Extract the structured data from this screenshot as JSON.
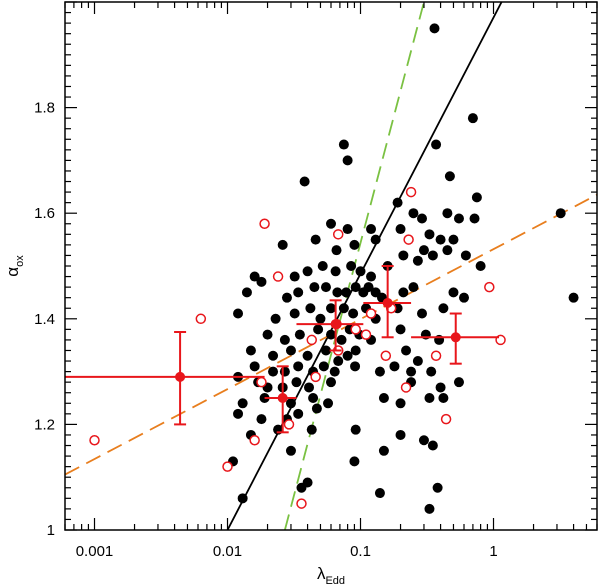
{
  "chart_data": {
    "type": "scatter",
    "title": "",
    "xlabel": {
      "main": "λ",
      "sub": "Edd"
    },
    "ylabel": {
      "main": "α",
      "sub": "ox"
    },
    "xscale": "log",
    "xlim": [
      0.0006,
      6.0
    ],
    "ylim": [
      1.0,
      2.0
    ],
    "x_ticks": [
      0.001,
      0.01,
      0.1,
      1
    ],
    "x_tick_labels": [
      "0.001",
      "0.01",
      "0.1",
      "1"
    ],
    "y_ticks": [
      1.0,
      1.2,
      1.4,
      1.6,
      1.8
    ],
    "y_tick_labels": [
      "1",
      "1.2",
      "1.4",
      "1.6",
      "1.8"
    ],
    "grid": false,
    "legend": "none",
    "colors": {
      "filled": "#000000",
      "open": "#e8161b",
      "binned": "#e8161b",
      "solid_fit": "#000000",
      "green_fit": "#7ac142",
      "orange_fit": "#e87e1e"
    },
    "series": [
      {
        "marker": "filled-circle",
        "points": [
          [
            0.36,
            1.95
          ],
          [
            0.7,
            1.78
          ],
          [
            0.075,
            1.73
          ],
          [
            0.08,
            1.7
          ],
          [
            0.37,
            1.73
          ],
          [
            0.75,
            1.63
          ],
          [
            0.47,
            1.67
          ],
          [
            0.038,
            1.66
          ],
          [
            0.19,
            1.62
          ],
          [
            0.25,
            1.6
          ],
          [
            0.29,
            1.59
          ],
          [
            0.06,
            1.58
          ],
          [
            0.08,
            1.57
          ],
          [
            0.12,
            1.57
          ],
          [
            0.45,
            1.6
          ],
          [
            0.55,
            1.59
          ],
          [
            0.72,
            1.59
          ],
          [
            3.2,
            1.6
          ],
          [
            0.026,
            1.54
          ],
          [
            0.046,
            1.55
          ],
          [
            0.066,
            1.53
          ],
          [
            0.09,
            1.54
          ],
          [
            0.13,
            1.55
          ],
          [
            0.2,
            1.57
          ],
          [
            0.33,
            1.56
          ],
          [
            0.4,
            1.55
          ],
          [
            0.5,
            1.55
          ],
          [
            0.3,
            1.53
          ],
          [
            0.016,
            1.48
          ],
          [
            0.018,
            1.47
          ],
          [
            0.032,
            1.48
          ],
          [
            0.04,
            1.49
          ],
          [
            0.052,
            1.5
          ],
          [
            0.065,
            1.49
          ],
          [
            0.085,
            1.5
          ],
          [
            0.1,
            1.49
          ],
          [
            0.12,
            1.48
          ],
          [
            0.16,
            1.5
          ],
          [
            0.21,
            1.52
          ],
          [
            0.27,
            1.51
          ],
          [
            0.35,
            1.52
          ],
          [
            0.45,
            1.53
          ],
          [
            0.62,
            1.52
          ],
          [
            0.8,
            1.5
          ],
          [
            0.014,
            1.45
          ],
          [
            0.028,
            1.44
          ],
          [
            0.034,
            1.45
          ],
          [
            0.045,
            1.46
          ],
          [
            0.055,
            1.46
          ],
          [
            0.067,
            1.45
          ],
          [
            0.078,
            1.45
          ],
          [
            0.092,
            1.46
          ],
          [
            0.105,
            1.45
          ],
          [
            0.115,
            1.46
          ],
          [
            0.13,
            1.45
          ],
          [
            0.145,
            1.44
          ],
          [
            0.21,
            1.45
          ],
          [
            0.25,
            1.46
          ],
          [
            0.5,
            1.45
          ],
          [
            0.6,
            1.44
          ],
          [
            0.012,
            1.41
          ],
          [
            0.023,
            1.4
          ],
          [
            0.032,
            1.41
          ],
          [
            0.042,
            1.42
          ],
          [
            0.05,
            1.4
          ],
          [
            0.06,
            1.42
          ],
          [
            0.075,
            1.42
          ],
          [
            0.088,
            1.41
          ],
          [
            0.11,
            1.42
          ],
          [
            0.13,
            1.4
          ],
          [
            0.19,
            1.42
          ],
          [
            0.29,
            1.41
          ],
          [
            0.42,
            1.42
          ],
          [
            0.02,
            1.37
          ],
          [
            0.027,
            1.36
          ],
          [
            0.035,
            1.37
          ],
          [
            0.048,
            1.38
          ],
          [
            0.06,
            1.37
          ],
          [
            0.072,
            1.36
          ],
          [
            0.083,
            1.38
          ],
          [
            0.098,
            1.37
          ],
          [
            0.12,
            1.36
          ],
          [
            0.2,
            1.38
          ],
          [
            0.31,
            1.37
          ],
          [
            0.39,
            1.36
          ],
          [
            0.015,
            1.34
          ],
          [
            0.022,
            1.33
          ],
          [
            0.03,
            1.34
          ],
          [
            0.04,
            1.33
          ],
          [
            0.055,
            1.34
          ],
          [
            0.068,
            1.32
          ],
          [
            0.08,
            1.33
          ],
          [
            0.092,
            1.34
          ],
          [
            0.22,
            1.34
          ],
          [
            0.27,
            1.32
          ],
          [
            0.016,
            1.31
          ],
          [
            0.022,
            1.3
          ],
          [
            0.027,
            1.3
          ],
          [
            0.034,
            1.31
          ],
          [
            0.044,
            1.3
          ],
          [
            0.053,
            1.31
          ],
          [
            0.064,
            1.3
          ],
          [
            0.091,
            1.31
          ],
          [
            0.14,
            1.3
          ],
          [
            0.18,
            1.31
          ],
          [
            0.24,
            1.3
          ],
          [
            0.34,
            1.3
          ],
          [
            0.012,
            1.29
          ],
          [
            0.017,
            1.28
          ],
          [
            0.02,
            1.27
          ],
          [
            0.026,
            1.27
          ],
          [
            0.033,
            1.28
          ],
          [
            0.041,
            1.27
          ],
          [
            0.06,
            1.28
          ],
          [
            0.24,
            1.28
          ],
          [
            0.4,
            1.27
          ],
          [
            0.55,
            1.28
          ],
          [
            0.013,
            1.24
          ],
          [
            0.019,
            1.25
          ],
          [
            0.03,
            1.24
          ],
          [
            0.044,
            1.25
          ],
          [
            0.057,
            1.24
          ],
          [
            0.15,
            1.25
          ],
          [
            0.2,
            1.24
          ],
          [
            0.33,
            1.25
          ],
          [
            0.42,
            1.25
          ],
          [
            0.012,
            1.22
          ],
          [
            0.018,
            1.21
          ],
          [
            0.028,
            1.21
          ],
          [
            0.034,
            1.22
          ],
          [
            0.047,
            1.23
          ],
          [
            0.015,
            1.18
          ],
          [
            0.024,
            1.19
          ],
          [
            0.043,
            1.19
          ],
          [
            0.092,
            1.19
          ],
          [
            0.2,
            1.18
          ],
          [
            0.3,
            1.17
          ],
          [
            0.35,
            1.16
          ],
          [
            0.03,
            1.15
          ],
          [
            0.15,
            1.15
          ],
          [
            0.011,
            1.13
          ],
          [
            0.09,
            1.13
          ],
          [
            0.04,
            1.09
          ],
          [
            0.036,
            1.08
          ],
          [
            0.38,
            1.08
          ],
          [
            0.14,
            1.07
          ],
          [
            0.013,
            1.06
          ],
          [
            0.33,
            1.04
          ],
          [
            4.0,
            1.44
          ]
        ]
      },
      {
        "marker": "open-circle",
        "points": [
          [
            0.24,
            1.64
          ],
          [
            0.019,
            1.58
          ],
          [
            0.068,
            1.56
          ],
          [
            0.23,
            1.55
          ],
          [
            0.024,
            1.48
          ],
          [
            0.0063,
            1.4
          ],
          [
            0.93,
            1.46
          ],
          [
            0.12,
            1.41
          ],
          [
            0.17,
            1.42
          ],
          [
            0.066,
            1.39
          ],
          [
            0.092,
            1.38
          ],
          [
            0.043,
            1.36
          ],
          [
            0.11,
            1.37
          ],
          [
            0.068,
            1.34
          ],
          [
            0.155,
            1.33
          ],
          [
            0.37,
            1.33
          ],
          [
            1.13,
            1.36
          ],
          [
            0.018,
            1.28
          ],
          [
            0.22,
            1.27
          ],
          [
            0.046,
            1.29
          ],
          [
            0.029,
            1.2
          ],
          [
            0.016,
            1.17
          ],
          [
            0.01,
            1.12
          ],
          [
            0.44,
            1.21
          ],
          [
            0.001,
            1.17
          ],
          [
            0.036,
            1.05
          ]
        ]
      }
    ],
    "binned": [
      {
        "x": 0.0044,
        "y": 1.29,
        "xerr": [
          0.0006,
          0.019
        ],
        "yerr": [
          1.2,
          1.375
        ]
      },
      {
        "x": 0.026,
        "y": 1.25,
        "xerr": [
          0.019,
          0.033
        ],
        "yerr": [
          1.185,
          1.31
        ]
      },
      {
        "x": 0.065,
        "y": 1.39,
        "xerr": [
          0.033,
          0.105
        ],
        "yerr": [
          1.34,
          1.435
        ]
      },
      {
        "x": 0.16,
        "y": 1.43,
        "xerr": [
          0.105,
          0.24
        ],
        "yerr": [
          1.365,
          1.5
        ]
      },
      {
        "x": 0.52,
        "y": 1.365,
        "xerr": [
          0.24,
          1.1
        ],
        "yerr": [
          1.315,
          1.41
        ]
      }
    ],
    "lines": [
      {
        "style": "solid",
        "color_key": "solid_fit",
        "p1": [
          0.01,
          1.0
        ],
        "p2": [
          1.15,
          2.0
        ]
      },
      {
        "style": "dashed",
        "color_key": "green_fit",
        "p1": [
          0.027,
          1.0
        ],
        "p2": [
          0.3,
          2.0
        ]
      },
      {
        "style": "dashed",
        "color_key": "orange_fit",
        "p1": [
          0.0006,
          1.105
        ],
        "p2": [
          6.0,
          1.635
        ]
      }
    ]
  }
}
